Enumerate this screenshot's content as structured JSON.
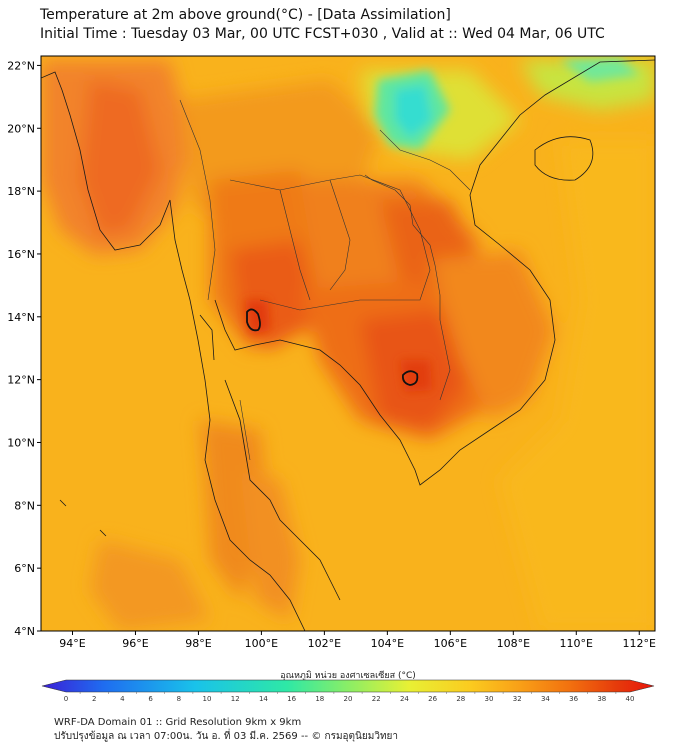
{
  "title": {
    "line1": "Temperature at 2m above ground(°C) - [Data Assimilation]",
    "line2": "Initial Time : Tuesday 03 Mar, 00 UTC FCST+030 , Valid at :: Wed 04 Mar, 06 UTC"
  },
  "map": {
    "lat_labels": [
      "22°N",
      "20°N",
      "18°N",
      "16°N",
      "14°N",
      "12°N",
      "10°N",
      "8°N",
      "6°N",
      "4°N"
    ],
    "lat_values": [
      22,
      20,
      18,
      16,
      14,
      12,
      10,
      8,
      6,
      4
    ],
    "lon_labels": [
      "94°E",
      "96°E",
      "98°E",
      "100°E",
      "102°E",
      "104°E",
      "106°E",
      "108°E",
      "110°E",
      "112°E"
    ],
    "lon_values": [
      94,
      96,
      98,
      100,
      102,
      104,
      106,
      108,
      110,
      112
    ],
    "lat_range": [
      4,
      22.3
    ],
    "lon_range": [
      93,
      112.5
    ]
  },
  "colorbar": {
    "label": "อุณหภูมิ หน่วย องศาเซลเซียส (°C)",
    "ticks": [
      "0",
      "2",
      "4",
      "6",
      "8",
      "10",
      "12",
      "14",
      "16",
      "18",
      "20",
      "22",
      "24",
      "26",
      "28",
      "30",
      "32",
      "34",
      "36",
      "38",
      "40"
    ],
    "colors": [
      "#3b1fd6",
      "#2a48e8",
      "#1f78f0",
      "#1ba6f2",
      "#19cde6",
      "#1de6c0",
      "#3ae89a",
      "#6aec7a",
      "#a6ef58",
      "#d9f03c",
      "#f7e82a",
      "#fbcb1f",
      "#f9a818",
      "#f58612",
      "#ef630e",
      "#e8430b",
      "#e02a0a",
      "#e8140a"
    ]
  },
  "footer": {
    "line1": "WRF-DA Domain 01 :: Grid Resolution 9km x 9km",
    "line2": "ปรับปรุงข้อมูล ณ เวลา 07:00น. วัน อ. ที่ 03 มี.ค. 2569 -- © กรมอุตุนิยมวิทยา"
  }
}
